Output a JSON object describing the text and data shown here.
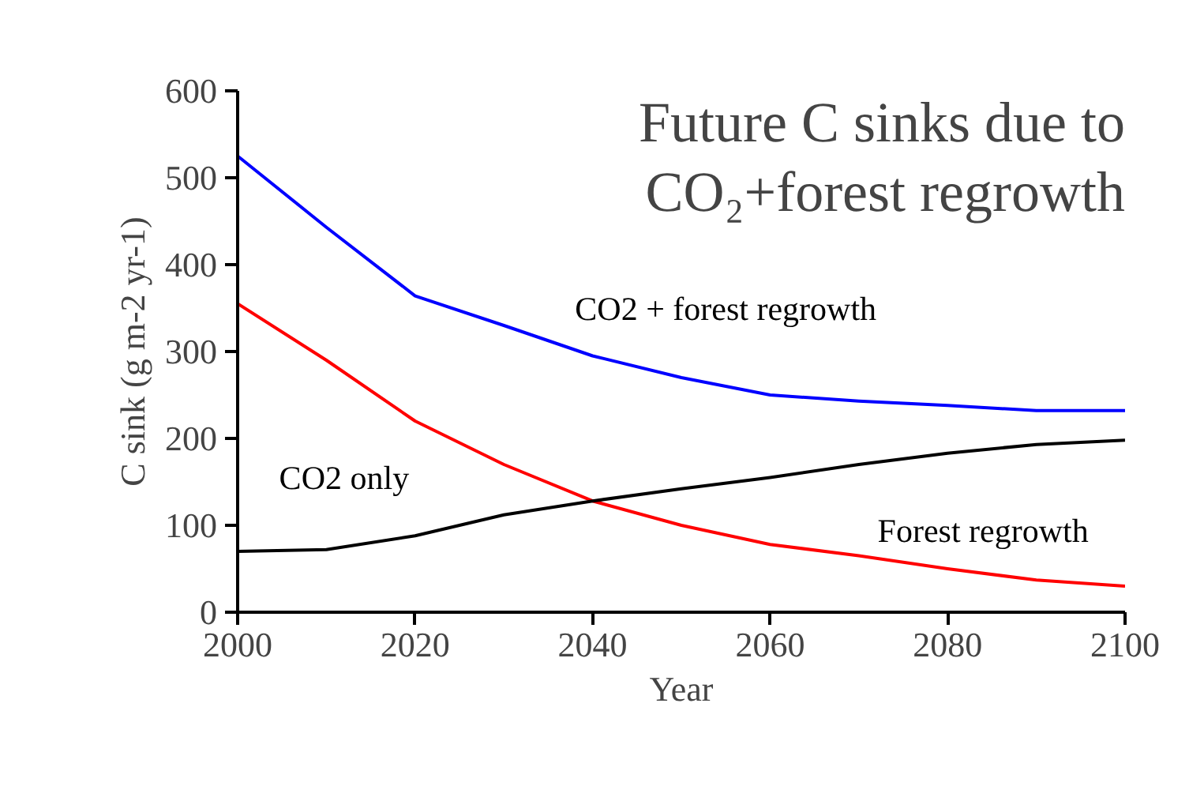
{
  "chart_data": {
    "type": "line",
    "title": "Future C sinks due to\nCO₂+forest regrowth",
    "xlabel": "Year",
    "ylabel": "C sink (g m-2 yr-1)",
    "x": [
      2000,
      2010,
      2020,
      2030,
      2040,
      2050,
      2060,
      2070,
      2080,
      2090,
      2100
    ],
    "series": [
      {
        "name": "CO2 + forest regrowth",
        "color": "#0000ff",
        "values": [
          525,
          443,
          364,
          330,
          295,
          270,
          250,
          243,
          238,
          232,
          232
        ]
      },
      {
        "name": "Forest regrowth",
        "color": "#ff0000",
        "values": [
          355,
          290,
          220,
          170,
          128,
          100,
          78,
          65,
          50,
          37,
          30
        ]
      },
      {
        "name": "CO2 only",
        "color": "#000000",
        "values": [
          70,
          72,
          88,
          112,
          128,
          142,
          155,
          170,
          183,
          193,
          198
        ]
      }
    ],
    "xlim": [
      2000,
      2100
    ],
    "ylim": [
      0,
      600
    ],
    "xticks": [
      2000,
      2020,
      2040,
      2060,
      2080,
      2100
    ],
    "yticks": [
      0,
      100,
      200,
      300,
      400,
      500,
      600
    ],
    "grid": false,
    "legend": false,
    "marker": "none",
    "line_style": "solid"
  }
}
